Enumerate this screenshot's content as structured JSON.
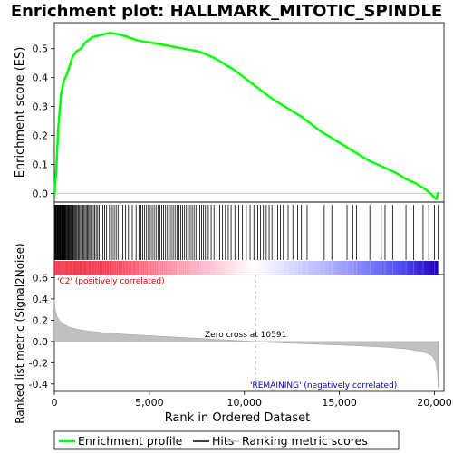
{
  "title": "Enrichment plot: HALLMARK_MITOTIC_SPINDLE",
  "chart_data": [
    {
      "type": "line",
      "name": "enrichment-score-panel",
      "ylabel": "Enrichment score (ES)",
      "ylim": [
        -0.03,
        0.59
      ],
      "yticks": [
        0.0,
        0.1,
        0.2,
        0.3,
        0.4,
        0.5
      ],
      "ytick_labels": [
        "0.0",
        "0.1",
        "0.2",
        "0.3",
        "0.4",
        "0.5"
      ],
      "xlim": [
        0,
        20500
      ],
      "grid": false,
      "series": [
        {
          "name": "Enrichment profile",
          "color": "#00ff00",
          "x": [
            0,
            100,
            200,
            350,
            500,
            650,
            800,
            950,
            1150,
            1400,
            1600,
            1800,
            2000,
            2300,
            2600,
            2900,
            3200,
            3500,
            3900,
            4300,
            4700,
            5200,
            5600,
            6000,
            6400,
            6800,
            7200,
            7600,
            8000,
            8500,
            9000,
            9500,
            10000,
            10500,
            11000,
            11500,
            12000,
            12500,
            13000,
            13500,
            14000,
            14500,
            15000,
            15500,
            16000,
            16500,
            17000,
            17500,
            18000,
            18500,
            19000,
            19500,
            19800,
            20000,
            20100,
            20200
          ],
          "y": [
            -0.01,
            0.08,
            0.22,
            0.34,
            0.39,
            0.41,
            0.44,
            0.47,
            0.49,
            0.5,
            0.52,
            0.53,
            0.54,
            0.545,
            0.55,
            0.555,
            0.552,
            0.548,
            0.54,
            0.53,
            0.525,
            0.52,
            0.515,
            0.51,
            0.505,
            0.5,
            0.495,
            0.49,
            0.48,
            0.465,
            0.445,
            0.425,
            0.4,
            0.375,
            0.35,
            0.325,
            0.305,
            0.285,
            0.265,
            0.24,
            0.215,
            0.195,
            0.175,
            0.155,
            0.135,
            0.115,
            0.1,
            0.085,
            0.07,
            0.05,
            0.035,
            0.015,
            0.0,
            -0.015,
            -0.02,
            0.005
          ]
        }
      ]
    },
    {
      "type": "table",
      "name": "hits-panel",
      "xlim": [
        0,
        20500
      ],
      "hit_positions": [
        30,
        60,
        90,
        120,
        150,
        180,
        210,
        240,
        270,
        300,
        330,
        360,
        390,
        420,
        450,
        480,
        510,
        540,
        570,
        600,
        640,
        680,
        720,
        760,
        800,
        840,
        880,
        920,
        960,
        1000,
        1050,
        1100,
        1150,
        1200,
        1260,
        1320,
        1380,
        1440,
        1500,
        1560,
        1620,
        1680,
        1740,
        1800,
        1860,
        1920,
        1980,
        2050,
        2120,
        2200,
        2280,
        2360,
        2450,
        2550,
        2650,
        2750,
        2900,
        3050,
        3150,
        3250,
        3350,
        3450,
        3600,
        3750,
        3900,
        4100,
        4300,
        4450,
        4550,
        4650,
        4750,
        4850,
        4950,
        5050,
        5150,
        5250,
        5350,
        5450,
        5550,
        5650,
        5750,
        5850,
        5950,
        6050,
        6150,
        6250,
        6350,
        6450,
        6550,
        6650,
        6750,
        6850,
        6950,
        7050,
        7150,
        7250,
        7350,
        7450,
        7550,
        7650,
        7750,
        7850,
        7950,
        8100,
        8250,
        8400,
        8550,
        8700,
        8850,
        9000,
        9150,
        9300,
        9500,
        9700,
        9900,
        10100,
        10300,
        10500,
        10700,
        10850,
        11000,
        11150,
        11300,
        11450,
        11600,
        11750,
        11900,
        12050,
        12300,
        12550,
        12800,
        13000,
        13300,
        14200,
        14600,
        15400,
        15700,
        15900,
        16600,
        17200,
        17400,
        17800,
        18500,
        18900,
        19400,
        19700,
        20000,
        20200
      ],
      "color_bar_stops": [
        {
          "pos": 0.0,
          "color": "#e8001a"
        },
        {
          "pos": 0.2,
          "color": "#ff5a6e"
        },
        {
          "pos": 0.38,
          "color": "#ffb3c6"
        },
        {
          "pos": 0.52,
          "color": "#ffffff"
        },
        {
          "pos": 0.72,
          "color": "#b0b0ff"
        },
        {
          "pos": 0.9,
          "color": "#5050f0"
        },
        {
          "pos": 1.0,
          "color": "#2000c0"
        }
      ]
    },
    {
      "type": "area",
      "name": "ranked-metric-panel",
      "ylabel": "Ranked list metric (Signal2Noise)",
      "xlabel": "Rank in Ordered Dataset",
      "ylim": [
        -0.47,
        0.63
      ],
      "yticks": [
        0.6,
        0.4,
        0.2,
        0.0,
        -0.2,
        -0.4
      ],
      "ytick_labels": [
        "0.6",
        "0.4",
        "0.2",
        "0.0",
        "-0.2",
        "-0.4"
      ],
      "xlim": [
        0,
        20500
      ],
      "xticks": [
        0,
        5000,
        10000,
        15000,
        20000
      ],
      "xtick_labels": [
        "0",
        "5,000",
        "10,000",
        "15,000",
        "20,000"
      ],
      "grid": false,
      "series": [
        {
          "name": "Ranking metric scores",
          "color": "#c0c0c0",
          "x": [
            0,
            50,
            150,
            300,
            500,
            800,
            1200,
            1700,
            2500,
            3500,
            5000,
            6500,
            8000,
            9500,
            10591,
            11500,
            13000,
            14500,
            16000,
            17500,
            18500,
            19200,
            19600,
            19900,
            20050,
            20150,
            20200
          ],
          "y": [
            0.4,
            0.3,
            0.23,
            0.19,
            0.16,
            0.135,
            0.115,
            0.1,
            0.085,
            0.07,
            0.055,
            0.04,
            0.025,
            0.01,
            0.0,
            -0.01,
            -0.02,
            -0.03,
            -0.04,
            -0.055,
            -0.07,
            -0.09,
            -0.11,
            -0.14,
            -0.19,
            -0.28,
            -0.44
          ]
        }
      ],
      "annotations": {
        "positive_label": "'C2' (positively correlated)",
        "negative_label": "'REMAINING' (negatively correlated)",
        "zero_cross_label": "Zero cross at 10591",
        "zero_cross": 10591
      }
    }
  ],
  "legend": {
    "placement": "bottom",
    "items": [
      {
        "label": "Enrichment profile",
        "color": "#00ff00"
      },
      {
        "label": "Hits",
        "color": "#000000"
      },
      {
        "label": "Ranking metric scores",
        "color": "#c0c0c0"
      }
    ]
  }
}
